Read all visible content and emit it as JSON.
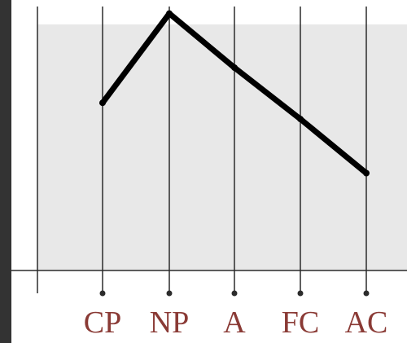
{
  "chart_data": {
    "type": "line",
    "categories": [
      "CP",
      "NP",
      "A",
      "FC",
      "AC"
    ],
    "values": [
      62,
      95,
      75,
      56,
      36
    ],
    "ylim": [
      0,
      100
    ],
    "grid": true,
    "title": "",
    "xlabel": "",
    "ylabel": ""
  },
  "colors": {
    "frame": "#333333",
    "canvas": "#ffffff",
    "plot_area": "#e8e8e8",
    "gridline": "#2b2b2b",
    "axis": "#2b2b2b",
    "series_line": "#000000",
    "tick_label": "#8a3a35"
  }
}
